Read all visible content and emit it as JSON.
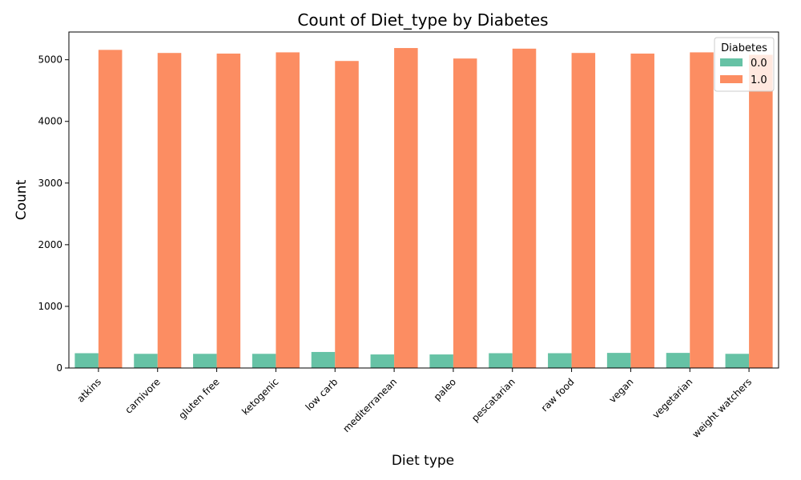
{
  "chart_data": {
    "type": "bar",
    "title": "Count of Diet_type by Diabetes",
    "xlabel": "Diet type",
    "ylabel": "Count",
    "ylim": [
      0,
      5450
    ],
    "yticks": [
      0,
      1000,
      2000,
      3000,
      4000,
      5000
    ],
    "grid": false,
    "legend": {
      "title": "Diabetes",
      "placement": "top-right"
    },
    "categories": [
      "atkins",
      "carnivore",
      "gluten free",
      "ketogenic",
      "low carb",
      "mediterranean",
      "paleo",
      "pescatarian",
      "raw food",
      "vegan",
      "vegetarian",
      "weight watchers"
    ],
    "series": [
      {
        "name": "0.0",
        "color": "#66c2a5",
        "values": [
          240,
          230,
          230,
          230,
          260,
          220,
          220,
          240,
          240,
          245,
          245,
          230
        ]
      },
      {
        "name": "1.0",
        "color": "#fc8d62",
        "values": [
          5160,
          5110,
          5100,
          5120,
          4980,
          5190,
          5020,
          5180,
          5110,
          5100,
          5120,
          5080
        ]
      }
    ]
  }
}
